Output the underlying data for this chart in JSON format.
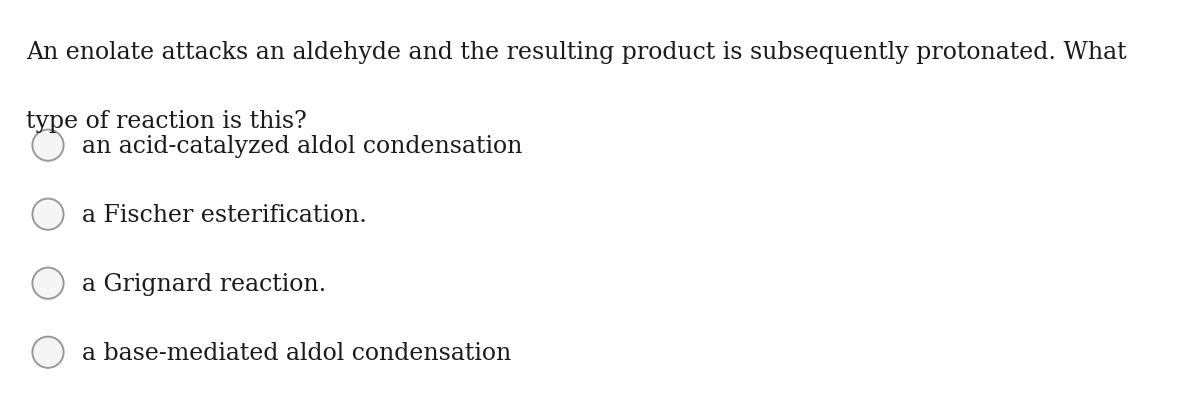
{
  "background_color": "#ffffff",
  "question_text_line1": "An enolate attacks an aldehyde and the resulting product is subsequently protonated. What",
  "question_text_line2": "type of reaction is this?",
  "options": [
    "an acid-catalyzed aldol condensation",
    "a Fischer esterification.",
    "a Grignard reaction.",
    "a base-mediated aldol condensation"
  ],
  "text_color": "#1a1a1a",
  "circle_edge_color": "#999999",
  "circle_fill_color": "#f5f5f5",
  "font_size_question": 17,
  "font_size_options": 17,
  "fig_width": 12.0,
  "fig_height": 4.06
}
